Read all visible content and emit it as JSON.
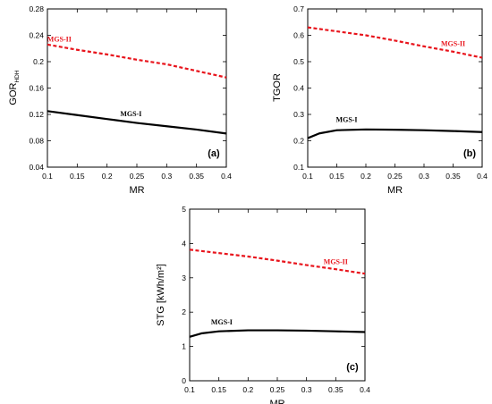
{
  "chart_data": [
    {
      "type": "line",
      "panel_label": "(a)",
      "xlabel": "MR",
      "ylabel": "GOR",
      "ylabel_sub": "HDH",
      "xlim": [
        0.1,
        0.4
      ],
      "ylim": [
        0.04,
        0.28
      ],
      "xticks": [
        "0.1",
        "0.15",
        "0.2",
        "0.25",
        "0.3",
        "0.35",
        "0.4"
      ],
      "yticks": [
        "0.04",
        "0.08",
        "0.12",
        "0.16",
        "0.2",
        "0.24",
        "0.28"
      ],
      "series": [
        {
          "name": "MGS-II",
          "color": "#e8141c",
          "dashed": true,
          "x": [
            0.1,
            0.15,
            0.2,
            0.25,
            0.3,
            0.35,
            0.4
          ],
          "y": [
            0.226,
            0.218,
            0.211,
            0.203,
            0.196,
            0.186,
            0.176
          ]
        },
        {
          "name": "MGS-I",
          "color": "#000000",
          "dashed": false,
          "x": [
            0.1,
            0.15,
            0.2,
            0.25,
            0.3,
            0.35,
            0.4
          ],
          "y": [
            0.125,
            0.119,
            0.113,
            0.107,
            0.102,
            0.097,
            0.091
          ]
        }
      ]
    },
    {
      "type": "line",
      "panel_label": "(b)",
      "xlabel": "MR",
      "ylabel": "TGOR",
      "xlim": [
        0.1,
        0.4
      ],
      "ylim": [
        0.1,
        0.7
      ],
      "xticks": [
        "0.1",
        "0.15",
        "0.2",
        "0.25",
        "0.3",
        "0.35",
        "0.4"
      ],
      "yticks": [
        "0.1",
        "0.2",
        "0.3",
        "0.4",
        "0.5",
        "0.6",
        "0.7"
      ],
      "series": [
        {
          "name": "MGS-II",
          "color": "#e8141c",
          "dashed": true,
          "x": [
            0.1,
            0.15,
            0.2,
            0.25,
            0.3,
            0.35,
            0.4
          ],
          "y": [
            0.63,
            0.615,
            0.6,
            0.58,
            0.558,
            0.538,
            0.515
          ]
        },
        {
          "name": "MGS-I",
          "color": "#000000",
          "dashed": false,
          "x": [
            0.1,
            0.12,
            0.15,
            0.2,
            0.25,
            0.3,
            0.35,
            0.4
          ],
          "y": [
            0.21,
            0.228,
            0.24,
            0.243,
            0.242,
            0.24,
            0.237,
            0.233
          ]
        }
      ]
    },
    {
      "type": "line",
      "panel_label": "(c)",
      "xlabel": "MR",
      "ylabel": "STG [kWh/m²]",
      "xlim": [
        0.1,
        0.4
      ],
      "ylim": [
        0,
        5
      ],
      "xticks": [
        "0.1",
        "0.15",
        "0.2",
        "0.25",
        "0.3",
        "0.35",
        "0.4"
      ],
      "yticks": [
        "0",
        "1",
        "2",
        "3",
        "4",
        "5"
      ],
      "series": [
        {
          "name": "MGS-II",
          "color": "#e8141c",
          "dashed": true,
          "x": [
            0.1,
            0.15,
            0.2,
            0.25,
            0.3,
            0.35,
            0.4
          ],
          "y": [
            3.82,
            3.72,
            3.62,
            3.5,
            3.37,
            3.25,
            3.12
          ]
        },
        {
          "name": "MGS-I",
          "color": "#000000",
          "dashed": false,
          "x": [
            0.1,
            0.12,
            0.15,
            0.2,
            0.25,
            0.3,
            0.35,
            0.4
          ],
          "y": [
            1.28,
            1.38,
            1.44,
            1.47,
            1.47,
            1.46,
            1.44,
            1.42
          ]
        }
      ]
    }
  ]
}
